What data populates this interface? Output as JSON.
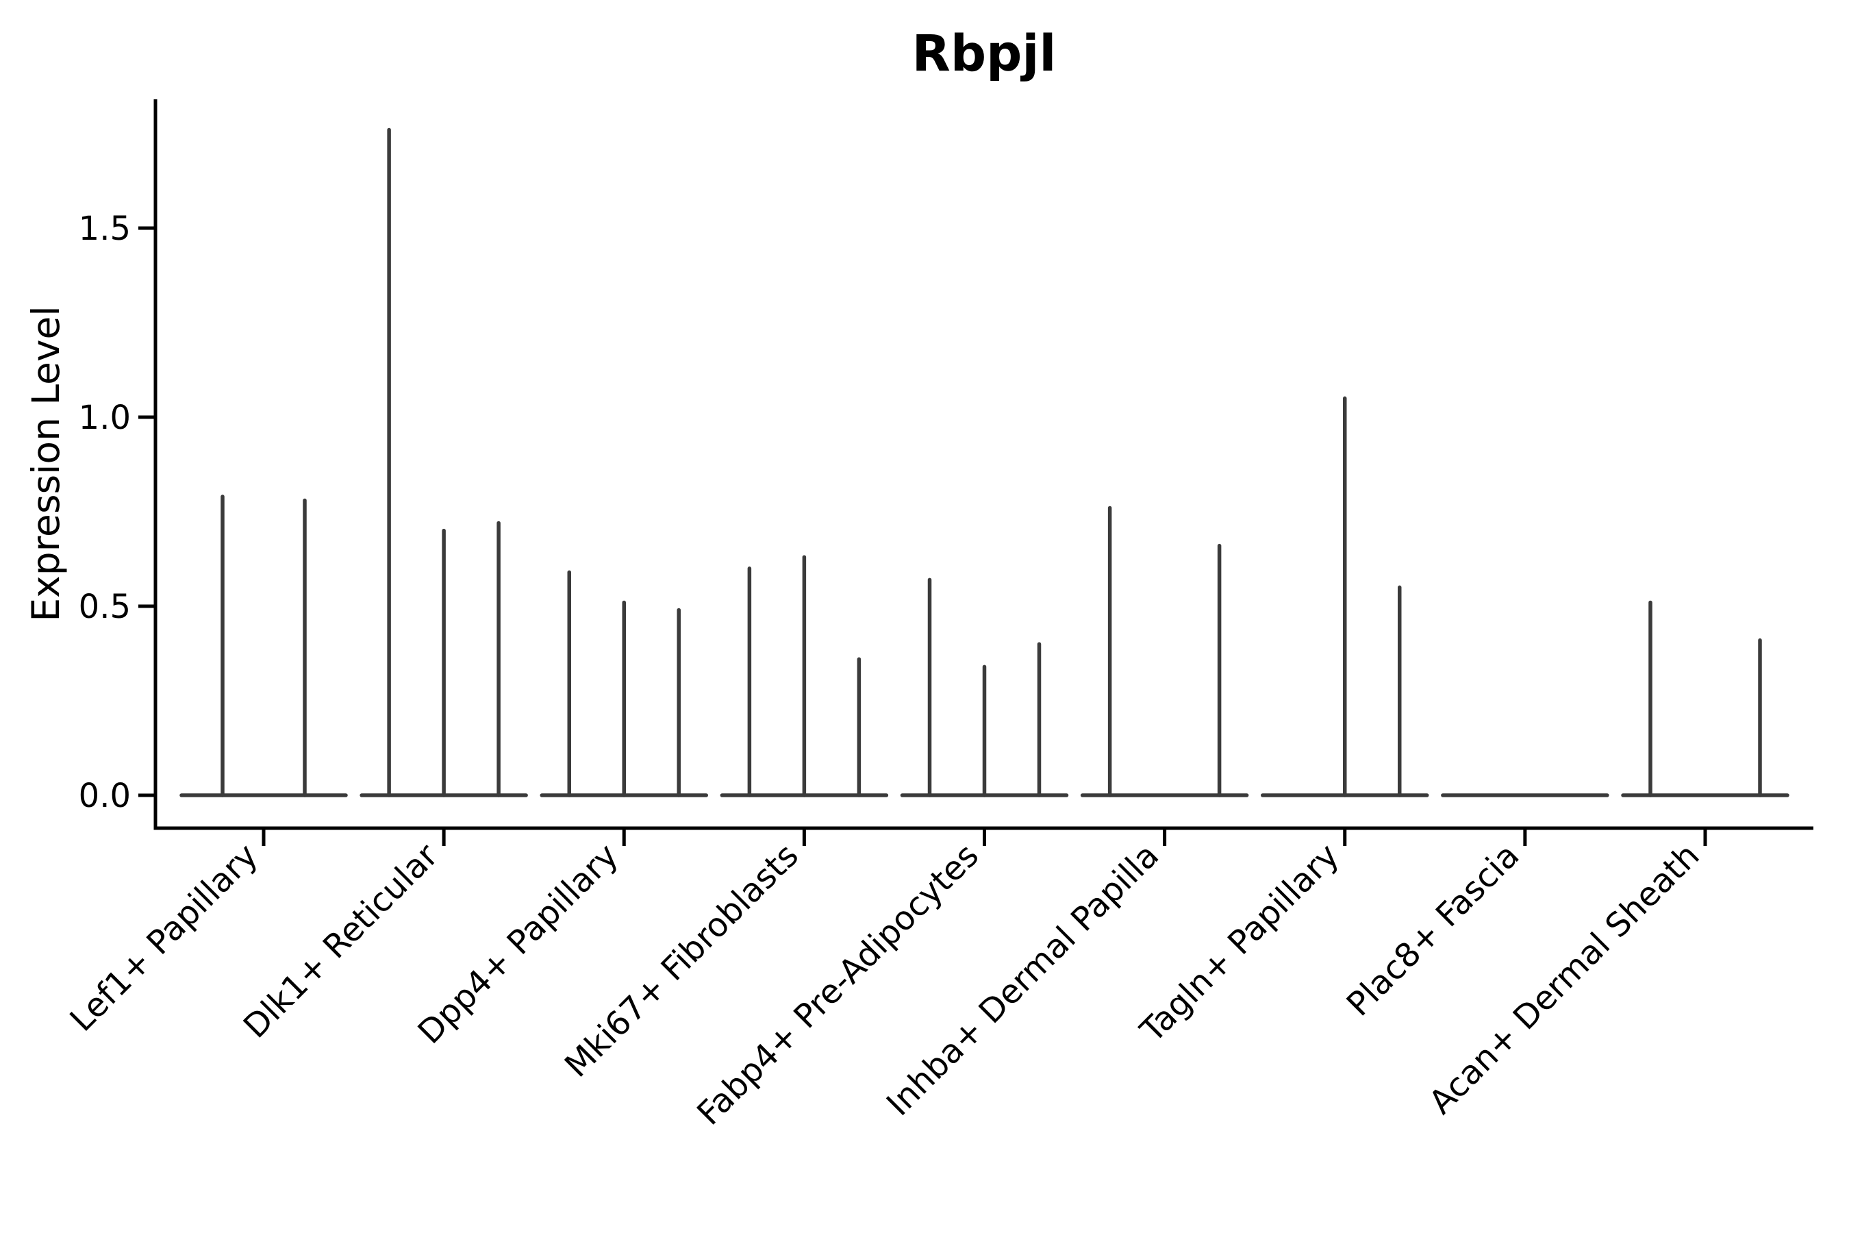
{
  "chart_data": {
    "type": "violin",
    "title": "Rbpjl",
    "ylabel": "Expression Level",
    "xlabel": "",
    "ytick_labels": [
      "0.0",
      "0.5",
      "1.0",
      "1.5"
    ],
    "ytick_values": [
      0.0,
      0.5,
      1.0,
      1.5
    ],
    "ylim": [
      -0.09,
      1.84
    ],
    "grid": false,
    "legend": "none",
    "line_color": "#3b3b3b",
    "axis_color": "#000000",
    "background_color": "#ffffff",
    "categories": [
      "Lef1+ Papillary",
      "Dlk1+ Reticular",
      "Dpp4+ Papillary",
      "Mki67+ Fibroblasts",
      "Fabp4+ Pre-Adipocytes",
      "Inhba+ Dermal Papilla",
      "Tagln+ Papillary",
      "Plac8+ Fascia",
      "Acan+ Dermal Sheath"
    ],
    "groups": [
      {
        "category": "Lef1+ Papillary",
        "violin_max_expression": [
          0.79,
          0.78
        ]
      },
      {
        "category": "Dlk1+ Reticular",
        "violin_max_expression": [
          1.76,
          0.7,
          0.72
        ]
      },
      {
        "category": "Dpp4+ Papillary",
        "violin_max_expression": [
          0.59,
          0.51,
          0.49
        ]
      },
      {
        "category": "Mki67+ Fibroblasts",
        "violin_max_expression": [
          0.6,
          0.63,
          0.36
        ]
      },
      {
        "category": "Fabp4+ Pre-Adipocytes",
        "violin_max_expression": [
          0.57,
          0.34,
          0.4
        ]
      },
      {
        "category": "Inhba+ Dermal Papilla",
        "violin_max_expression": [
          0.76,
          0.0,
          0.66
        ]
      },
      {
        "category": "Tagln+ Papillary",
        "violin_max_expression": [
          0.0,
          1.05,
          0.55
        ]
      },
      {
        "category": "Plac8+ Fascia",
        "violin_max_expression": [
          0.0,
          0.0,
          0.0
        ]
      },
      {
        "category": "Acan+ Dermal Sheath",
        "violin_max_expression": [
          0.51,
          0.0,
          0.41
        ]
      }
    ]
  }
}
